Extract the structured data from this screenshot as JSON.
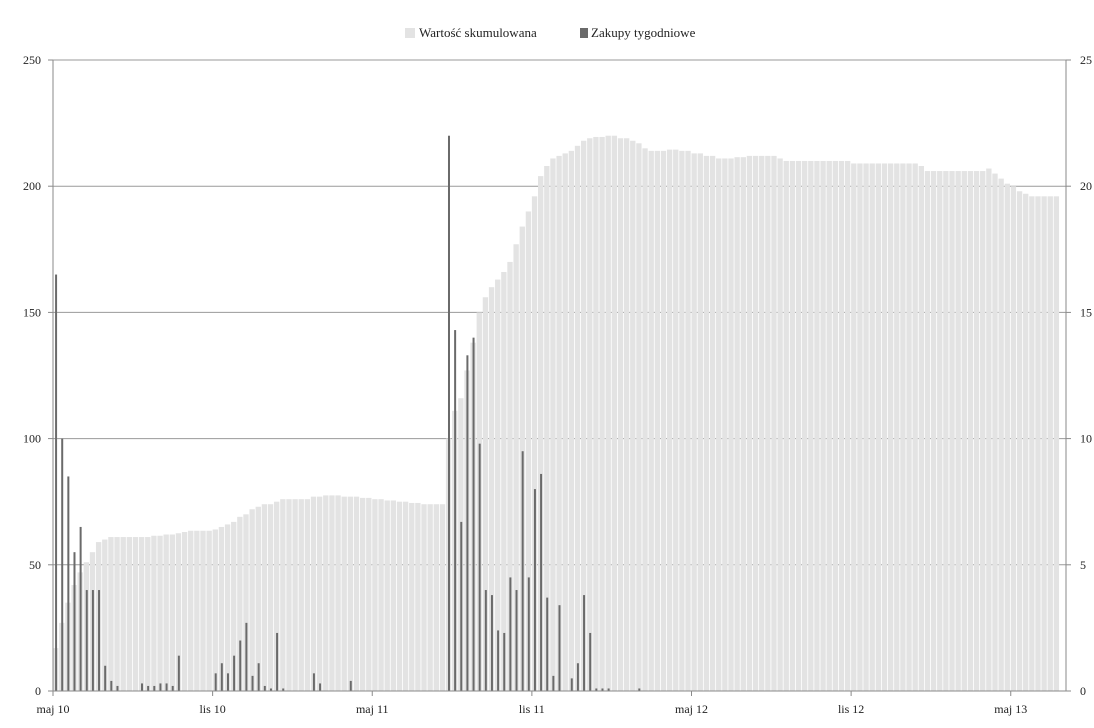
{
  "chart_data": {
    "type": "bar",
    "title": "",
    "xlabel": "",
    "ylabel": "",
    "legend": {
      "placement": "top-center",
      "entries": [
        {
          "label": "Wartość skumulowana",
          "color": "#e3e3e3"
        },
        {
          "label": "Zakupy tygodniowe",
          "color": "#6a6a6a"
        }
      ]
    },
    "x_axis": {
      "ticks": [
        {
          "label": "maj 10",
          "week": 0
        },
        {
          "label": "lis 10",
          "week": 26
        },
        {
          "label": "maj 11",
          "week": 52
        },
        {
          "label": "lis 11",
          "week": 78
        },
        {
          "label": "maj 12",
          "week": 104
        },
        {
          "label": "lis 12",
          "week": 130
        },
        {
          "label": "maj 13",
          "week": 156
        }
      ],
      "range_weeks": [
        0,
        165
      ]
    },
    "y_left": {
      "ylim": [
        0,
        250
      ],
      "ticks": [
        0,
        50,
        100,
        150,
        200,
        250
      ],
      "tick_labels": [
        "0",
        "50",
        "100",
        "150",
        "200",
        "250"
      ]
    },
    "y_right": {
      "ylim": [
        0,
        25
      ],
      "ticks": [
        0,
        5,
        10,
        15,
        20,
        25
      ],
      "tick_labels": [
        "0",
        "5",
        "10",
        "15",
        "20",
        "25"
      ]
    },
    "grid": true,
    "series": [
      {
        "name": "Wartość skumulowana",
        "axis": "left",
        "values": [
          17,
          27,
          35,
          42,
          47,
          51,
          55,
          59,
          60,
          61,
          61,
          61,
          61,
          61,
          61,
          61,
          61.5,
          61.5,
          62,
          62,
          62.5,
          63,
          63.5,
          63.5,
          63.5,
          63.5,
          64,
          65,
          66,
          67,
          69,
          70,
          72,
          73,
          74,
          74,
          75,
          76,
          76,
          76,
          76,
          76,
          77,
          77,
          77.5,
          77.5,
          77.5,
          77,
          77,
          77,
          76.5,
          76.5,
          76,
          76,
          75.5,
          75.5,
          75,
          75,
          74.5,
          74.5,
          74,
          74,
          74,
          74,
          100,
          111,
          116,
          127,
          138,
          150,
          156,
          160,
          163,
          166,
          170,
          177,
          184,
          190,
          196,
          204,
          208,
          211,
          212,
          213,
          214,
          216,
          218,
          219,
          219.5,
          219.5,
          220,
          220,
          219,
          219,
          218,
          217,
          215,
          214,
          214,
          214,
          214.5,
          214.5,
          214,
          214,
          213,
          213,
          212,
          212,
          211,
          211,
          211,
          211.5,
          211.5,
          212,
          212,
          212,
          212,
          212,
          211,
          210,
          210,
          210,
          210,
          210,
          210,
          210,
          210,
          210,
          210,
          210,
          209,
          209,
          209,
          209,
          209,
          209,
          209,
          209,
          209,
          209,
          209,
          208,
          206,
          206,
          206,
          206,
          206,
          206,
          206,
          206,
          206,
          206,
          207,
          205,
          203,
          201,
          200,
          198,
          197,
          196,
          196,
          196,
          196,
          196
        ]
      },
      {
        "name": "Zakupy tygodniowe",
        "axis": "right",
        "values": [
          16.5,
          10,
          8.5,
          5.5,
          6.5,
          4,
          4,
          4,
          1,
          0.4,
          0.2,
          0,
          0,
          0,
          0.3,
          0.2,
          0.2,
          0.3,
          0.3,
          0.2,
          1.4,
          0,
          0,
          0,
          0,
          0,
          0.7,
          1.1,
          0.7,
          1.4,
          2,
          2.7,
          0.6,
          1.1,
          0.2,
          0.1,
          2.3,
          0.1,
          0,
          0,
          0,
          0,
          0.7,
          0.3,
          0,
          0,
          0,
          0,
          0.4,
          0,
          0,
          0,
          0,
          0,
          0,
          0,
          0,
          0,
          0,
          0,
          0,
          0,
          0,
          0,
          22,
          14.3,
          6.7,
          13.3,
          14,
          9.8,
          4,
          3.8,
          2.4,
          2.3,
          4.5,
          4,
          9.5,
          4.5,
          8,
          8.6,
          3.7,
          0.6,
          3.4,
          0,
          0.5,
          1.1,
          3.8,
          2.3,
          0.1,
          0.1,
          0.1,
          0,
          0,
          0,
          0,
          0.1,
          0,
          0,
          0,
          0,
          0,
          0,
          0,
          0,
          0,
          0,
          0,
          0,
          0,
          0,
          0,
          0,
          0,
          0,
          0,
          0,
          0,
          0,
          0,
          0,
          0,
          0,
          0,
          0,
          0,
          0,
          0,
          0,
          0,
          0,
          0,
          0,
          0,
          0,
          0,
          0,
          0,
          0,
          0,
          0,
          0,
          0,
          0,
          0,
          0,
          0,
          0,
          0,
          0,
          0,
          0,
          0,
          0,
          0,
          0,
          0,
          0,
          0,
          0,
          0,
          0,
          0,
          0,
          0,
          0
        ]
      }
    ]
  }
}
